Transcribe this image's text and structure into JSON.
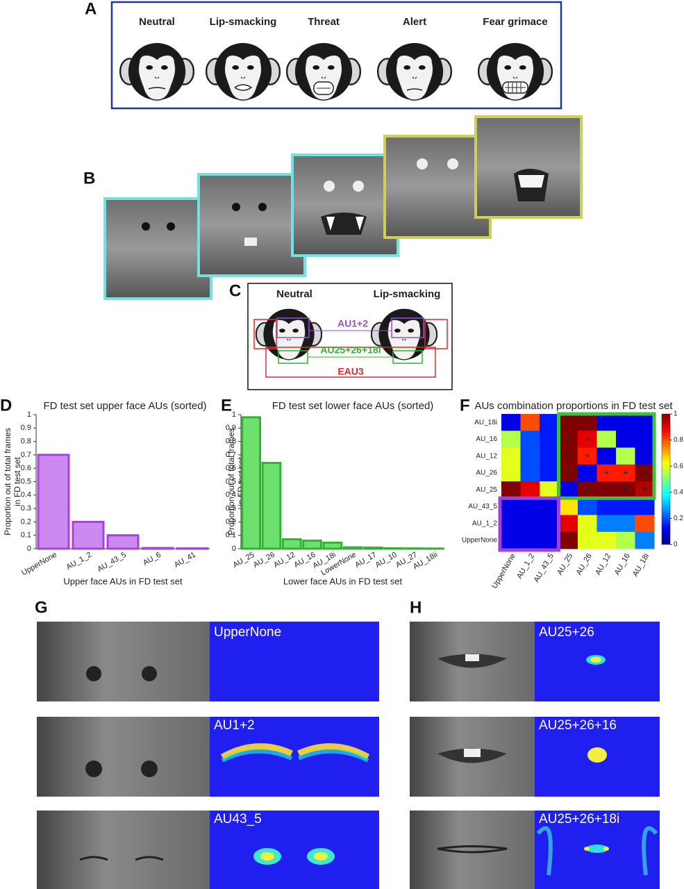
{
  "panel_labels": [
    "A",
    "B",
    "C",
    "D",
    "E",
    "F",
    "G",
    "H"
  ],
  "panel_a": {
    "faces": [
      "Neutral",
      "Lip-smacking",
      "Threat",
      "Alert",
      "Fear grimace"
    ]
  },
  "panel_c": {
    "faces": [
      "Neutral",
      "Lip-smacking"
    ],
    "regions": [
      "AU1+2",
      "AU25+26+18i",
      "EAU3"
    ]
  },
  "chart_data": [
    {
      "type": "bar",
      "title": "FD test set upper face AUs (sorted)",
      "y_label": [
        "Proportion out of total frames",
        "in FD test set"
      ],
      "x_label": "Upper face AUs in FD test set",
      "categories": [
        "UpperNone",
        "AU_1_2",
        "AU_43_5",
        "AU_6",
        "AU_41"
      ],
      "values": [
        0.7,
        0.2,
        0.1,
        0.005,
        0.002
      ],
      "color": "#cc8af0",
      "edge_color": "#a442e2",
      "ylim": [
        0,
        1
      ],
      "yticks": [
        0,
        0.1,
        0.2,
        0.3,
        0.4,
        0.5,
        0.6,
        0.7,
        0.8,
        0.9,
        1
      ]
    },
    {
      "type": "bar",
      "title": "FD test set lower face AUs (sorted)",
      "y_label": [
        "Proportion out of total frames",
        "in FD test set"
      ],
      "x_label": "Lower face AUs in FD test set",
      "categories": [
        "AU_25",
        "AU_26",
        "AU_12",
        "AU_16",
        "AU_18i",
        "LowerNone",
        "AU_17",
        "AU_10",
        "AU_27",
        "AU_18ii"
      ],
      "values": [
        0.98,
        0.64,
        0.07,
        0.06,
        0.045,
        0.01,
        0.008,
        0.003,
        0.002,
        0.001
      ],
      "color": "#6ee06e",
      "edge_color": "#2fb52f",
      "ylim": [
        0,
        1
      ],
      "yticks": [
        0,
        0.1,
        0.2,
        0.3,
        0.4,
        0.5,
        0.6,
        0.7,
        0.8,
        0.9,
        1
      ]
    },
    {
      "type": "heatmap",
      "title": "AUs combination proportions in FD test set",
      "x_categories": [
        "UpperNone",
        "AU_1_2",
        "AU_43_5",
        "AU_25",
        "AU_26",
        "AU_12",
        "AU_16",
        "AU_18i"
      ],
      "y_categories": [
        "AU_18i",
        "AU_16",
        "AU_12",
        "AU_26",
        "AU_25",
        "AU_43_5",
        "AU_1_2",
        "UpperNone"
      ],
      "values": [
        [
          0.1,
          0.8,
          0.15,
          1.0,
          1.0,
          0.1,
          0.1,
          0.1
        ],
        [
          0.55,
          0.2,
          0.15,
          1.0,
          0.9,
          0.55,
          0.1,
          0.1
        ],
        [
          0.6,
          0.2,
          0.15,
          1.0,
          0.85,
          0.1,
          0.55,
          0.1
        ],
        [
          0.6,
          0.2,
          0.15,
          1.0,
          0.1,
          0.85,
          0.85,
          1.0
        ],
        [
          1.0,
          0.9,
          0.6,
          0.1,
          1.0,
          1.0,
          1.0,
          0.95
        ],
        [
          0.1,
          0.1,
          0.1,
          0.65,
          0.2,
          0.15,
          0.15,
          0.15
        ],
        [
          0.1,
          0.1,
          0.1,
          0.9,
          0.6,
          0.25,
          0.25,
          0.8
        ],
        [
          0.1,
          0.1,
          0.1,
          1.0,
          0.6,
          0.6,
          0.55,
          0.25
        ]
      ],
      "significant": [
        [
          false,
          false,
          false,
          true,
          true,
          false,
          false,
          false
        ],
        [
          false,
          false,
          false,
          true,
          true,
          false,
          false,
          false
        ],
        [
          false,
          false,
          false,
          true,
          true,
          false,
          false,
          false
        ],
        [
          false,
          false,
          false,
          true,
          false,
          true,
          true,
          true
        ],
        [
          false,
          false,
          false,
          false,
          true,
          true,
          true,
          true
        ],
        [
          false,
          false,
          false,
          false,
          false,
          false,
          false,
          false
        ],
        [
          false,
          false,
          false,
          false,
          false,
          false,
          false,
          false
        ],
        [
          false,
          false,
          false,
          false,
          false,
          false,
          false,
          false
        ]
      ],
      "significant_label": "+",
      "colormap": "jet",
      "clim": [
        0,
        1
      ],
      "colorbar_ticks": [
        0,
        0.2,
        0.4,
        0.6,
        0.8,
        1
      ]
    }
  ],
  "panel_g": {
    "labels": [
      "UpperNone",
      "AU1+2",
      "AU43_5"
    ]
  },
  "panel_h": {
    "labels": [
      "AU25+26",
      "AU25+26+16",
      "AU25+26+18i"
    ]
  }
}
